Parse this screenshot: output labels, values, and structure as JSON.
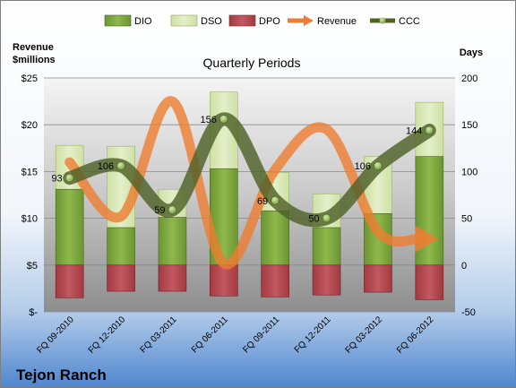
{
  "chart_data": {
    "type": "bar",
    "title": "Quarterly Periods",
    "company": "Tejon Ranch",
    "left_axis_title": [
      "Revenue",
      "$millions"
    ],
    "right_axis_title": "Days",
    "categories": [
      "FQ 09-2010",
      "FQ 12-2010",
      "FQ 03-2011",
      "FQ 06-2011",
      "FQ 09-2011",
      "FQ 12-2011",
      "FQ 03-2012",
      "FQ 06-2012"
    ],
    "left_ylim": [
      0,
      25
    ],
    "left_tick_values": [
      0,
      5,
      10,
      15,
      20,
      25
    ],
    "left_tick_labels": [
      "$-",
      "$5",
      "$10",
      "$15",
      "$20",
      "$25"
    ],
    "right_ylim": [
      -50,
      200
    ],
    "right_tick_values": [
      -50,
      0,
      50,
      100,
      150,
      200
    ],
    "right_tick_labels": [
      "-50",
      "0",
      "50",
      "100",
      "150",
      "200"
    ],
    "legend": [
      "DIO",
      "DSO",
      "DPO",
      "Revenue",
      "CCC"
    ],
    "legend_position": "top",
    "grid": true,
    "series": [
      {
        "name": "DIO",
        "axis": "right",
        "kind": "bar",
        "values": [
          81,
          40,
          51,
          103,
          58,
          40,
          55,
          116
        ]
      },
      {
        "name": "DSO",
        "axis": "right",
        "kind": "bar",
        "values": [
          47,
          87,
          30,
          82,
          41,
          36,
          61,
          58
        ]
      },
      {
        "name": "DPO",
        "axis": "right",
        "kind": "bar",
        "values": [
          -35,
          -28,
          -28,
          -33,
          -34,
          -32,
          -29,
          -37
        ]
      },
      {
        "name": "Revenue",
        "axis": "left",
        "kind": "line",
        "values": [
          16.0,
          10.2,
          22.5,
          5.2,
          15.2,
          19.5,
          8.6,
          7.8
        ]
      },
      {
        "name": "CCC",
        "axis": "right",
        "kind": "line",
        "values": [
          93,
          106,
          59,
          156,
          69,
          50,
          106,
          144
        ],
        "labels": [
          "93",
          "106",
          "59",
          "156",
          "69",
          "50",
          "106",
          "144"
        ]
      }
    ],
    "colors": {
      "dio": "#77a03c",
      "dso": "#d6e6b0",
      "dpo": "#b5434b",
      "revenue": "#ed7d31",
      "ccc": "#4f6228"
    }
  }
}
